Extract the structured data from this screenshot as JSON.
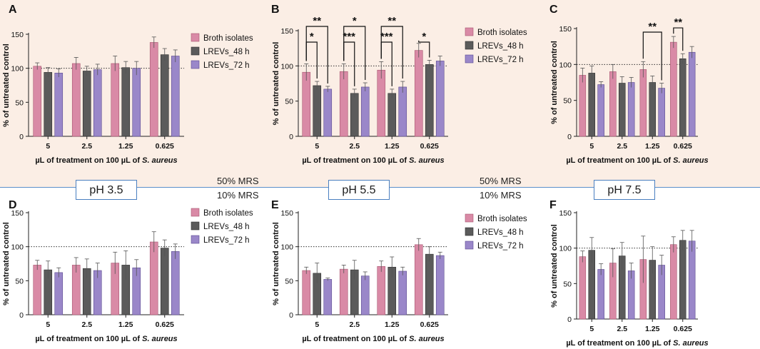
{
  "figure_labels": {
    "ph": [
      "pH 3.5",
      "pH 5.5",
      "pH 7.5"
    ],
    "mrs_top": "50% MRS",
    "mrs_bottom": "10% MRS"
  },
  "colors": {
    "broth": "#d98aa6",
    "lrev48": "#5b5b5b",
    "lrev72": "#9a87c9",
    "top_background": "#fbeee5",
    "divider": "#5b8fc9"
  },
  "chart_data": [
    {
      "panel": "A",
      "type": "bar",
      "ylabel": "% of untreated control",
      "xlabel_prefix": "µL of treatment on 100 µL of ",
      "xlabel_italic": "S. aureus",
      "categories": [
        "5",
        "2.5",
        "1.25",
        "0.625"
      ],
      "ylim": [
        0,
        150
      ],
      "yticks": [
        "0",
        "50",
        "100",
        "150"
      ],
      "reference_line": 100,
      "legend": [
        "Broth isolates",
        "LREVs_48 h",
        "LREVs_72 h"
      ],
      "series": [
        {
          "name": "Broth isolates",
          "values": [
            103,
            107,
            107,
            138
          ],
          "errors": [
            5,
            9,
            11,
            8
          ]
        },
        {
          "name": "LREVs_48 h",
          "values": [
            94,
            96,
            101,
            120
          ],
          "errors": [
            7,
            7,
            9,
            9
          ]
        },
        {
          "name": "LREVs_72 h",
          "values": [
            93,
            98,
            100,
            118
          ],
          "errors": [
            6,
            8,
            10,
            9
          ]
        }
      ],
      "significance": []
    },
    {
      "panel": "B",
      "type": "bar",
      "ylabel": "% of untreated control",
      "xlabel_prefix": "µL of treatment on 100 µL of ",
      "xlabel_italic": "S. aureus",
      "categories": [
        "5",
        "2.5",
        "1.25",
        "0.625"
      ],
      "ylim": [
        0,
        150
      ],
      "yticks": [
        "0",
        "50",
        "100",
        "150"
      ],
      "reference_line": 100,
      "legend": [
        "Broth isolates",
        "LREVs_48 h",
        "LREVs_72 h"
      ],
      "series": [
        {
          "name": "Broth isolates",
          "values": [
            91,
            92,
            94,
            122
          ],
          "errors": [
            12,
            11,
            12,
            10
          ]
        },
        {
          "name": "LREVs_48 h",
          "values": [
            72,
            61,
            61,
            102
          ],
          "errors": [
            6,
            6,
            6,
            6
          ]
        },
        {
          "name": "LREVs_72 h",
          "values": [
            67,
            70,
            70,
            107
          ],
          "errors": [
            4,
            6,
            8,
            7
          ]
        }
      ],
      "significance": [
        {
          "group": 0,
          "from": 0,
          "to": 1,
          "label": "*",
          "level": 1
        },
        {
          "group": 0,
          "from": 0,
          "to": 2,
          "label": "**",
          "level": 2
        },
        {
          "group": 1,
          "from": 0,
          "to": 1,
          "label": "***",
          "level": 1
        },
        {
          "group": 1,
          "from": 0,
          "to": 2,
          "label": "*",
          "level": 2
        },
        {
          "group": 2,
          "from": 0,
          "to": 1,
          "label": "***",
          "level": 1
        },
        {
          "group": 2,
          "from": 0,
          "to": 2,
          "label": "**",
          "level": 2
        },
        {
          "group": 3,
          "from": 0,
          "to": 1,
          "label": "*",
          "level": 1
        }
      ]
    },
    {
      "panel": "C",
      "type": "bar",
      "ylabel": "% of untreated control",
      "xlabel_prefix": "µL of treatment on 100 µL of ",
      "xlabel_italic": "S. aureus",
      "categories": [
        "5",
        "2.5",
        "1.25",
        "0.625"
      ],
      "ylim": [
        0,
        150
      ],
      "yticks": [
        "0",
        "50",
        "100",
        "150"
      ],
      "reference_line": 100,
      "legend": [],
      "series": [
        {
          "name": "Broth isolates",
          "values": [
            85,
            90,
            93,
            131
          ],
          "errors": [
            10,
            10,
            11,
            8
          ]
        },
        {
          "name": "LREVs_48 h",
          "values": [
            88,
            74,
            75,
            108
          ],
          "errors": [
            10,
            9,
            9,
            7
          ]
        },
        {
          "name": "LREVs_72 h",
          "values": [
            72,
            75,
            67,
            117
          ],
          "errors": [
            4,
            7,
            7,
            8
          ]
        }
      ],
      "significance": [
        {
          "group": 2,
          "from": 0,
          "to": 2,
          "label": "**",
          "level": 2
        },
        {
          "group": 3,
          "from": 0,
          "to": 1,
          "label": "**",
          "level": 2
        }
      ]
    },
    {
      "panel": "D",
      "type": "bar",
      "ylabel": "% of untreated control",
      "xlabel_prefix": "µL of treatment on 100 µL of ",
      "xlabel_italic": "S. aureus",
      "categories": [
        "5",
        "2.5",
        "1.25",
        "0.625"
      ],
      "ylim": [
        0,
        150
      ],
      "yticks": [
        "0",
        "50",
        "100",
        "150"
      ],
      "reference_line": 100,
      "legend": [
        "Broth isolates",
        "LREVs_48 h",
        "LREVs_72 h"
      ],
      "series": [
        {
          "name": "Broth isolates",
          "values": [
            73,
            73,
            76,
            107
          ],
          "errors": [
            7,
            11,
            16,
            15
          ]
        },
        {
          "name": "LREVs_48 h",
          "values": [
            66,
            68,
            73,
            98
          ],
          "errors": [
            13,
            14,
            21,
            12
          ]
        },
        {
          "name": "LREVs_72 h",
          "values": [
            62,
            65,
            69,
            93
          ],
          "errors": [
            7,
            11,
            12,
            11
          ]
        }
      ],
      "significance": []
    },
    {
      "panel": "E",
      "type": "bar",
      "ylabel": "% of untreated control",
      "xlabel_prefix": "µL of treatment on 100 µL of ",
      "xlabel_italic": "S. aureus",
      "categories": [
        "5",
        "2.5",
        "1.25",
        "0.625"
      ],
      "ylim": [
        0,
        150
      ],
      "yticks": [
        "0",
        "50",
        "100",
        "150"
      ],
      "reference_line": 100,
      "legend": [
        "Broth isolates",
        "LREVs_48 h",
        "LREVs_72 h"
      ],
      "series": [
        {
          "name": "Broth isolates",
          "values": [
            65,
            67,
            71,
            103
          ],
          "errors": [
            5,
            6,
            8,
            9
          ]
        },
        {
          "name": "LREVs_48 h",
          "values": [
            61,
            66,
            70,
            89
          ],
          "errors": [
            15,
            14,
            15,
            11
          ]
        },
        {
          "name": "LREVs_72 h",
          "values": [
            52,
            57,
            64,
            87
          ],
          "errors": [
            2,
            6,
            6,
            5
          ]
        }
      ],
      "significance": []
    },
    {
      "panel": "F",
      "type": "bar",
      "ylabel": "% of untreated control",
      "xlabel_prefix": "µL of treatment on 100 µL of ",
      "xlabel_italic": "S. aureus",
      "categories": [
        "5",
        "2.5",
        "1.25",
        "0.625"
      ],
      "ylim": [
        0,
        150
      ],
      "yticks": [
        "0",
        "50",
        "100",
        "150"
      ],
      "reference_line": 100,
      "legend": [],
      "series": [
        {
          "name": "Broth isolates",
          "values": [
            88,
            79,
            84,
            105
          ],
          "errors": [
            8,
            20,
            33,
            11
          ]
        },
        {
          "name": "LREVs_48 h",
          "values": [
            97,
            89,
            83,
            111
          ],
          "errors": [
            18,
            19,
            19,
            14
          ]
        },
        {
          "name": "LREVs_72 h",
          "values": [
            70,
            68,
            76,
            110
          ],
          "errors": [
            8,
            11,
            14,
            15
          ]
        }
      ],
      "significance": []
    }
  ]
}
